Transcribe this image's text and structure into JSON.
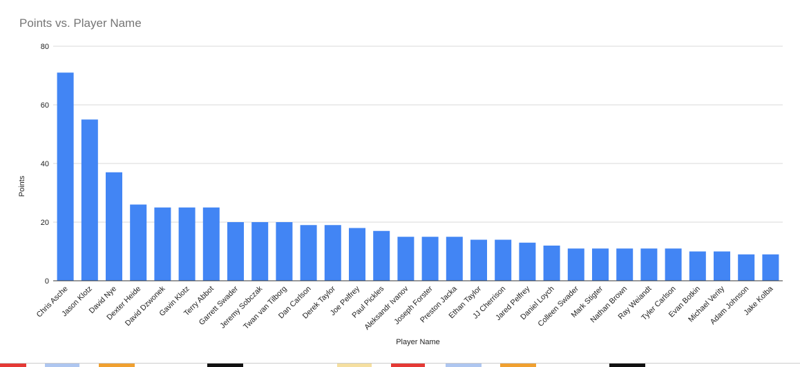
{
  "chart_data": {
    "type": "bar",
    "title": "Points vs. Player Name",
    "xlabel": "Player Name",
    "ylabel": "Points",
    "ylim": [
      0,
      80
    ],
    "yticks": [
      0,
      20,
      40,
      60,
      80
    ],
    "grid": true,
    "legend": "none",
    "bar_color": "#4285f4",
    "categories": [
      "Chris Asche",
      "Jason Klotz",
      "David Nye",
      "Dexter Heide",
      "David Dzwonek",
      "Gavin Klotz",
      "Terry Abbot",
      "Garrett Swader",
      "Jeremy Sobczak",
      "Twan van Tilborg",
      "Dan Carlson",
      "Derek Taylor",
      "Joe Pelfrey",
      "Paul Pickles",
      "Aleksandr Ivanov",
      "Joseph Forster",
      "Preston Jacka",
      "Ethan Taylor",
      "JJ Cherrison",
      "Jared Pelfrey",
      "Daniel Loych",
      "Colleen Swader",
      "Mark Stigter",
      "Nathan Brown",
      "Ray Weiandt",
      "Tyler Carlson",
      "Evan Botkin",
      "Michael Verity",
      "Adam Johnson",
      "Jake Kolba"
    ],
    "values": [
      71,
      55,
      37,
      26,
      25,
      25,
      25,
      20,
      20,
      20,
      19,
      19,
      18,
      17,
      15,
      15,
      15,
      14,
      14,
      13,
      12,
      11,
      11,
      11,
      11,
      11,
      10,
      10,
      9,
      9
    ]
  }
}
